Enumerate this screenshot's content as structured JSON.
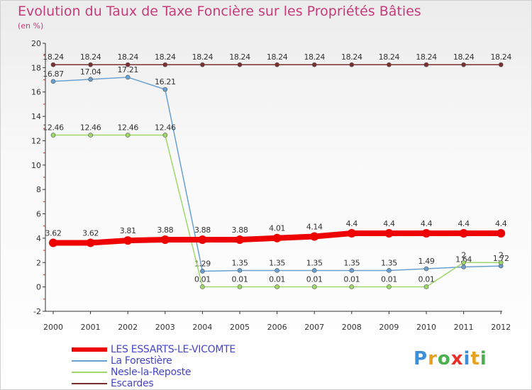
{
  "header": {
    "title": "Evolution du Taux de Taxe Foncière sur les Propriétés Bâties",
    "unit": "(en %)"
  },
  "chart_data": {
    "type": "line",
    "title": "Evolution du Taux de Taxe Foncière sur les Propriétés Bâties",
    "ylabel": "(en %)",
    "xlabel": "",
    "ylim": [
      -2,
      20
    ],
    "yticks": [
      -2,
      0,
      2,
      4,
      6,
      8,
      10,
      12,
      14,
      16,
      18,
      20
    ],
    "categories": [
      "2000",
      "2001",
      "2002",
      "2003",
      "2004",
      "2005",
      "2006",
      "2007",
      "2008",
      "2009",
      "2010",
      "2011",
      "2012"
    ],
    "grid": false,
    "legend_position": "bottom-left",
    "series": [
      {
        "name": "Escardes",
        "color": "#7b3030",
        "values": [
          18.24,
          18.24,
          18.24,
          18.24,
          18.24,
          18.24,
          18.24,
          18.24,
          18.24,
          18.24,
          18.24,
          18.24,
          18.24
        ],
        "labels": [
          "18.24",
          "18.24",
          "18.24",
          "18.24",
          "18.24",
          "18.24",
          "18.24",
          "18.24",
          "18.24",
          "18.24",
          "18.24",
          "18.24",
          "18.24"
        ]
      },
      {
        "name": "La Forestière",
        "color": "#6aa0d0",
        "values": [
          16.87,
          17.04,
          17.21,
          16.21,
          1.29,
          1.35,
          1.35,
          1.35,
          1.35,
          1.35,
          1.49,
          1.64,
          1.72
        ],
        "labels": [
          "16.87",
          "17.04",
          "17.21",
          "16.21",
          "1.29",
          "1.35",
          "1.35",
          "1.35",
          "1.35",
          "1.35",
          "1.49",
          "1.64",
          "1.72"
        ]
      },
      {
        "name": "Nesle-la-Reposte",
        "color": "#9ed86a",
        "values": [
          12.46,
          12.46,
          12.46,
          12.46,
          0.01,
          0.01,
          0.01,
          0.01,
          0.01,
          0.01,
          0.01,
          2,
          2
        ],
        "labels": [
          "12.46",
          "12.46",
          "12.46",
          "12.46",
          "0.01",
          "0.01",
          "0.01",
          "0.01",
          "0.01",
          "0.01",
          "0.01",
          "2",
          "2"
        ]
      },
      {
        "name": "LES ESSARTS-LE-VICOMTE",
        "color": "#ee0000",
        "values": [
          3.62,
          3.62,
          3.81,
          3.88,
          3.88,
          3.88,
          4.01,
          4.14,
          4.4,
          4.4,
          4.4,
          4.4,
          4.4
        ],
        "labels": [
          "3.62",
          "3.62",
          "3.81",
          "3.88",
          "3.88",
          "3.88",
          "4.01",
          "4.14",
          "4.4",
          "4.4",
          "4.4",
          "4.4",
          "4.4"
        ]
      }
    ]
  },
  "legend": {
    "items": [
      {
        "label": "LES ESSARTS-LE-VICOMTE",
        "color": "#ee0000"
      },
      {
        "label": "La Forestière",
        "color": "#6aa0d0"
      },
      {
        "label": "Nesle-la-Reposte",
        "color": "#9ed86a"
      },
      {
        "label": "Escardes",
        "color": "#7b3030"
      }
    ]
  },
  "logo": {
    "letters": [
      "P",
      "r",
      "o",
      "x",
      "i",
      "t",
      "i"
    ],
    "colors": [
      "#3a8fd8",
      "#e8a020",
      "#4caf50",
      "#e8302a",
      "#3a8fd8",
      "#e8a020",
      "#4caf50"
    ]
  }
}
